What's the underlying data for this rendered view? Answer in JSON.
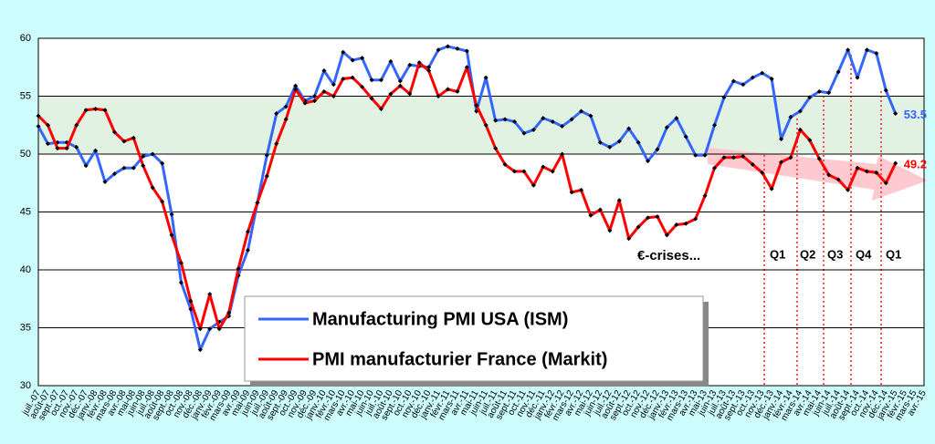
{
  "chart_data": {
    "type": "line",
    "categories": [
      "juil.-07",
      "août-07",
      "sept.-07",
      "oct.-07",
      "nov.-07",
      "déc.-07",
      "janv.-08",
      "févr.-08",
      "mars-08",
      "avr.-08",
      "mai-08",
      "juin-08",
      "juil.-08",
      "août-08",
      "sept.-08",
      "oct.-08",
      "nov.-08",
      "déc.-08",
      "janv.-09",
      "févr.-09",
      "mars-09",
      "avr.-09",
      "mai-09",
      "juin-09",
      "juil.-09",
      "août-09",
      "sept.-09",
      "oct.-09",
      "nov.-09",
      "déc.-09",
      "janv.-10",
      "févr.-10",
      "mars-10",
      "avr.-10",
      "mai-10",
      "juin-10",
      "juil.-10",
      "août-10",
      "sept.-10",
      "oct.-10",
      "nov.-10",
      "déc.-10",
      "janv.-11",
      "févr.-11",
      "mars-11",
      "avr.-11",
      "mai-11",
      "juin-11",
      "juil.-11",
      "août-11",
      "sept.-11",
      "oct.-11",
      "nov.-11",
      "déc.-11",
      "janv.-12",
      "févr.-12",
      "mars-12",
      "avr.-12",
      "mai-12",
      "juin-12",
      "juil.-12",
      "août-12",
      "sept.-12",
      "oct.-12",
      "nov.-12",
      "déc.-12",
      "janv.-13",
      "févr.-13",
      "mars-13",
      "avr.-13",
      "mai-13",
      "juin-13",
      "juil.-13",
      "août-13",
      "sept.-13",
      "oct.-13",
      "nov.-13",
      "déc.-13",
      "janv.-14",
      "févr.-14",
      "mars-14",
      "avr.-14",
      "mai-14",
      "juin-14",
      "juil.-14",
      "août-14",
      "sept.-14",
      "oct.-14",
      "nov.-14",
      "déc.-14",
      "janv.-15",
      "févr.-15",
      "mars-15",
      "avr.-15"
    ],
    "series": [
      {
        "name": "Manufacturing PMI USA (ISM)",
        "color": "#3366ff",
        "values": [
          52.4,
          50.9,
          51.0,
          51.0,
          50.6,
          49.0,
          50.3,
          47.6,
          48.3,
          48.8,
          48.8,
          49.8,
          50.0,
          49.2,
          44.8,
          38.9,
          36.6,
          33.1,
          34.9,
          35.5,
          36.0,
          39.5,
          41.7,
          45.8,
          49.9,
          53.5,
          54.1,
          55.9,
          54.6,
          55.0,
          57.2,
          56.0,
          58.8,
          58.1,
          58.3,
          56.4,
          56.4,
          58.0,
          56.3,
          57.7,
          57.6,
          57.5,
          59.0,
          59.3,
          59.1,
          58.9,
          53.7,
          56.6,
          52.9,
          53.0,
          52.8,
          51.8,
          52.1,
          53.1,
          52.8,
          52.4,
          53.0,
          53.7,
          53.3,
          51.0,
          50.6,
          51.1,
          52.2,
          51.0,
          49.4,
          50.4,
          52.3,
          53.1,
          51.5,
          49.9,
          49.9,
          52.5,
          54.9,
          56.3,
          56.0,
          56.6,
          57.0,
          56.5,
          51.3,
          53.2,
          53.7,
          54.9,
          55.4,
          55.3,
          57.1,
          59.0,
          56.6,
          59.0,
          58.7,
          55.5,
          53.5,
          null,
          null,
          null
        ]
      },
      {
        "name": "PMI manufacturier France (Markit)",
        "color": "#ff0000",
        "values": [
          53.3,
          52.5,
          50.5,
          50.5,
          52.5,
          53.8,
          53.9,
          53.8,
          51.9,
          51.1,
          51.4,
          49.0,
          47.1,
          45.9,
          43.0,
          40.6,
          37.3,
          34.9,
          37.9,
          34.9,
          36.3,
          40.1,
          43.3,
          45.8,
          48.1,
          50.9,
          53.0,
          55.6,
          54.4,
          54.6,
          55.4,
          55.0,
          56.5,
          56.6,
          55.8,
          54.8,
          53.9,
          55.2,
          55.9,
          55.2,
          57.9,
          57.2,
          55.0,
          55.6,
          55.4,
          57.5,
          54.2,
          52.5,
          50.5,
          49.1,
          48.5,
          48.5,
          47.3,
          48.9,
          48.5,
          50.0,
          46.7,
          46.9,
          44.7,
          45.2,
          43.4,
          46.0,
          42.7,
          43.7,
          44.5,
          44.6,
          43.0,
          43.9,
          44.0,
          44.4,
          46.4,
          48.8,
          49.7,
          49.7,
          49.8,
          49.1,
          48.4,
          47.0,
          49.3,
          49.7,
          52.1,
          51.2,
          49.6,
          48.2,
          47.8,
          46.9,
          48.8,
          48.5,
          48.4,
          47.5,
          49.2,
          null,
          null,
          null
        ]
      }
    ],
    "ylim": [
      30,
      60
    ],
    "yticks": [
      30,
      35,
      40,
      45,
      50,
      55,
      60
    ],
    "grid": true,
    "band": {
      "range": [
        50,
        55
      ],
      "color": "#e2f2e2"
    },
    "annotations": [
      "€-crises...",
      "Q1",
      "Q2",
      "Q3",
      "Q4",
      "Q1"
    ]
  }
}
